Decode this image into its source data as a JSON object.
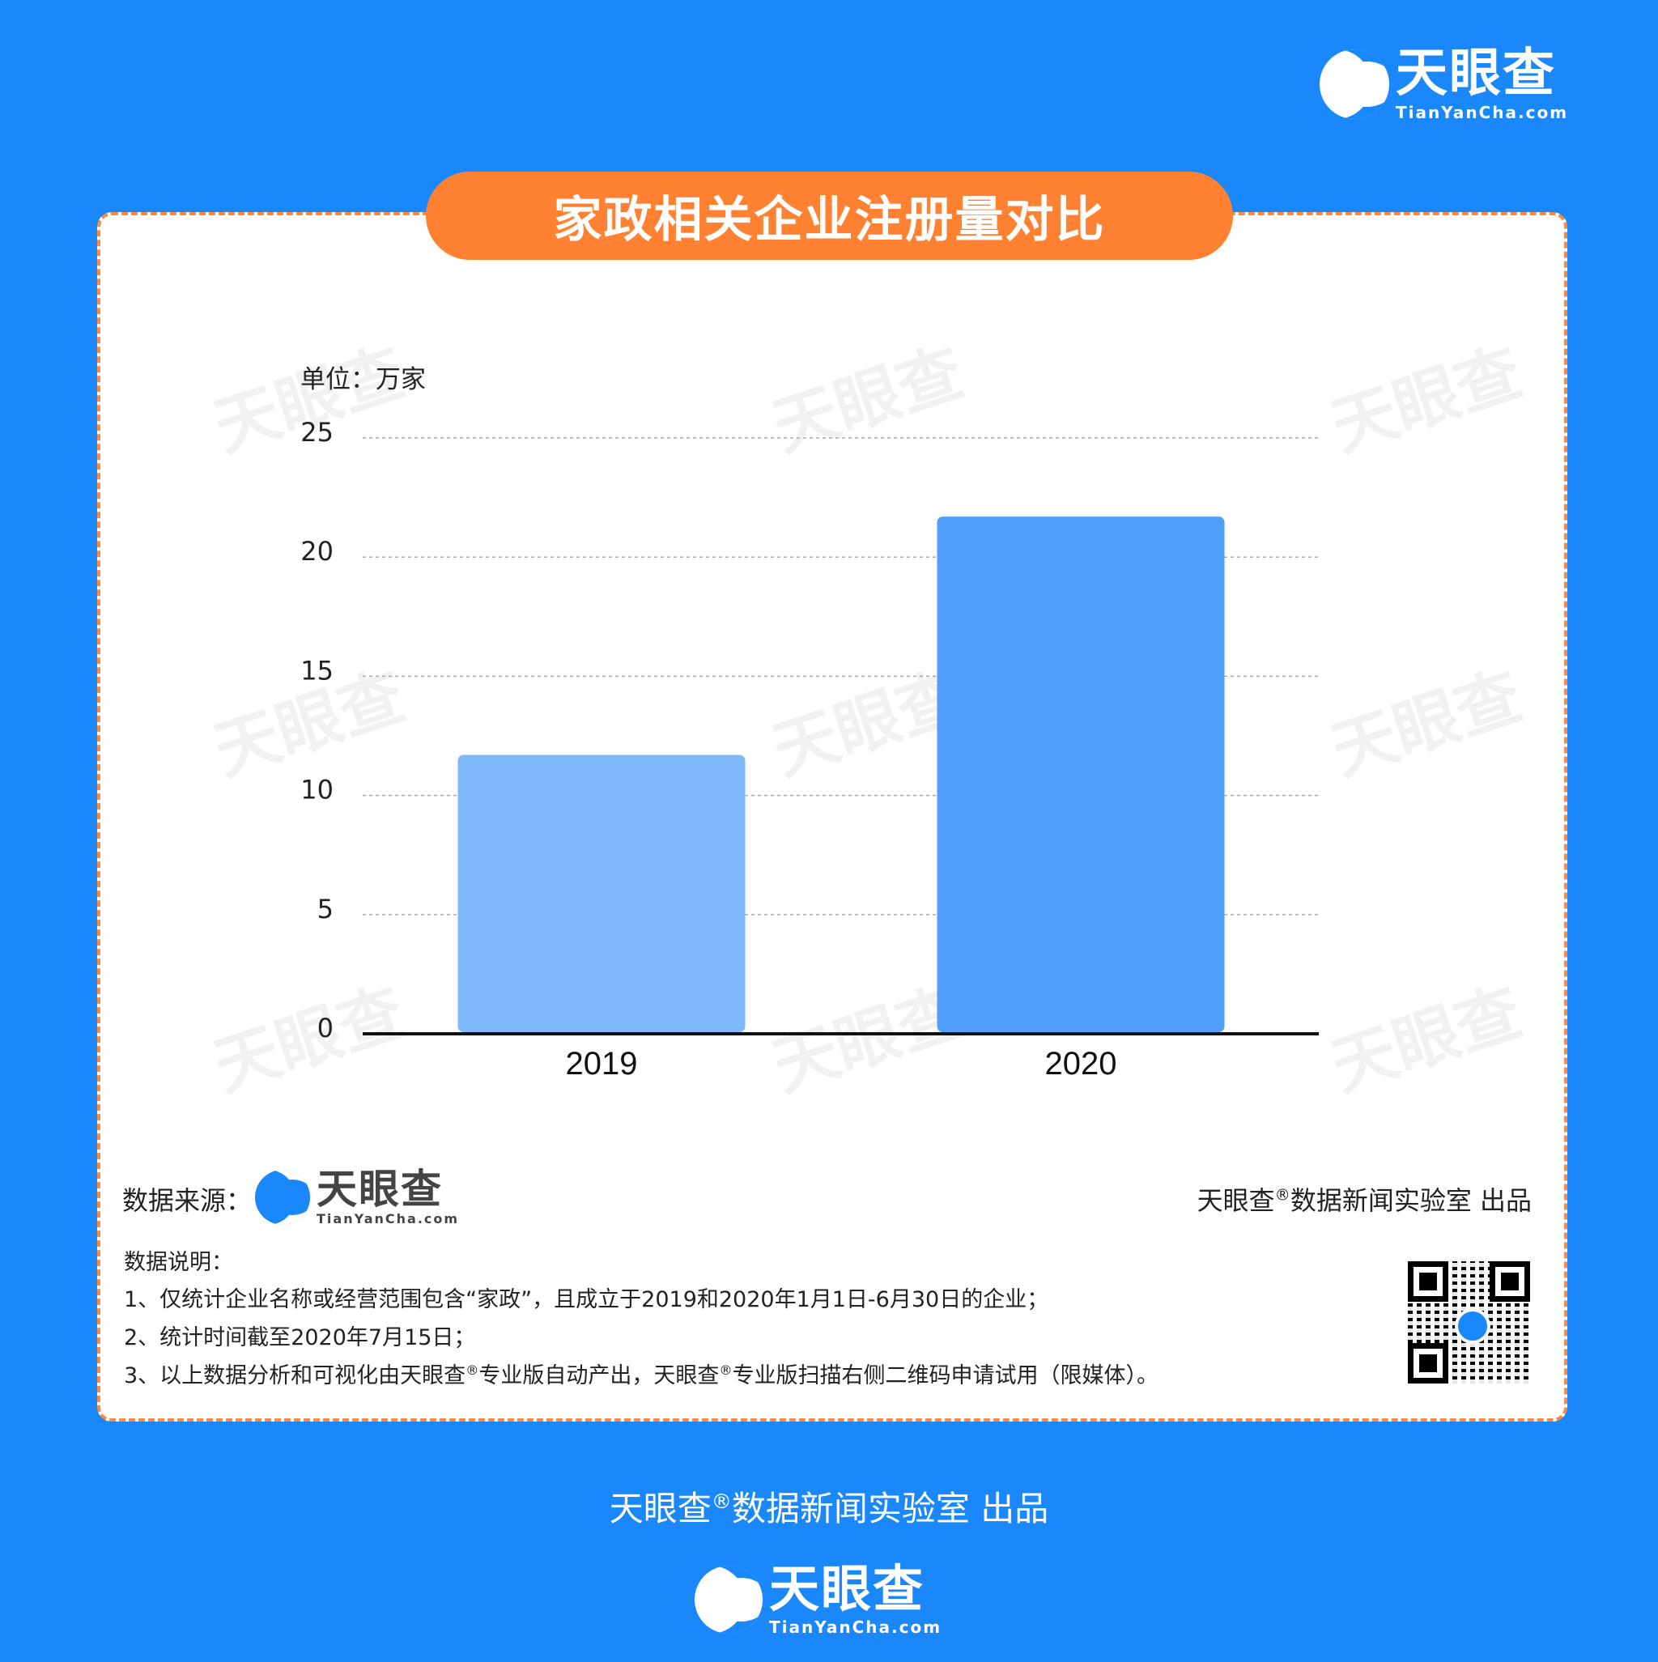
{
  "brand": {
    "name_cn": "天眼查",
    "name_en": "TianYanCha.com",
    "blue": "#1a88fb",
    "orange": "#ff8131"
  },
  "title": "家政相关企业注册量对比",
  "chart_data": {
    "type": "bar",
    "title": "家政相关企业注册量对比",
    "unit_label": "单位：万家",
    "categories": [
      "2019",
      "2020"
    ],
    "values": [
      11.7,
      21.7
    ],
    "colors": [
      "#7fb9fb",
      "#4f9ffb"
    ],
    "ylim": [
      0,
      25
    ],
    "yticks": [
      "0",
      "5",
      "10",
      "15",
      "20",
      "25"
    ],
    "grid": true,
    "legend": "none"
  },
  "footer": {
    "source_label": "数据来源：",
    "credit_brand": "天眼查",
    "credit_reg": "®",
    "credit_rest": "数据新闻实验室 出品",
    "notes_title": "数据说明：",
    "notes": [
      "1、仅统计企业名称或经营范围包含“家政”，且成立于2019和2020年1月1日-6月30日的企业；",
      "2、统计时间截至2020年7月15日；"
    ],
    "note3_a": "3、以上数据分析和可视化由天眼查",
    "note3_b": "专业版自动产出，天眼查",
    "note3_c": "专业版扫描右侧二维码申请试用（限媒体）。"
  }
}
